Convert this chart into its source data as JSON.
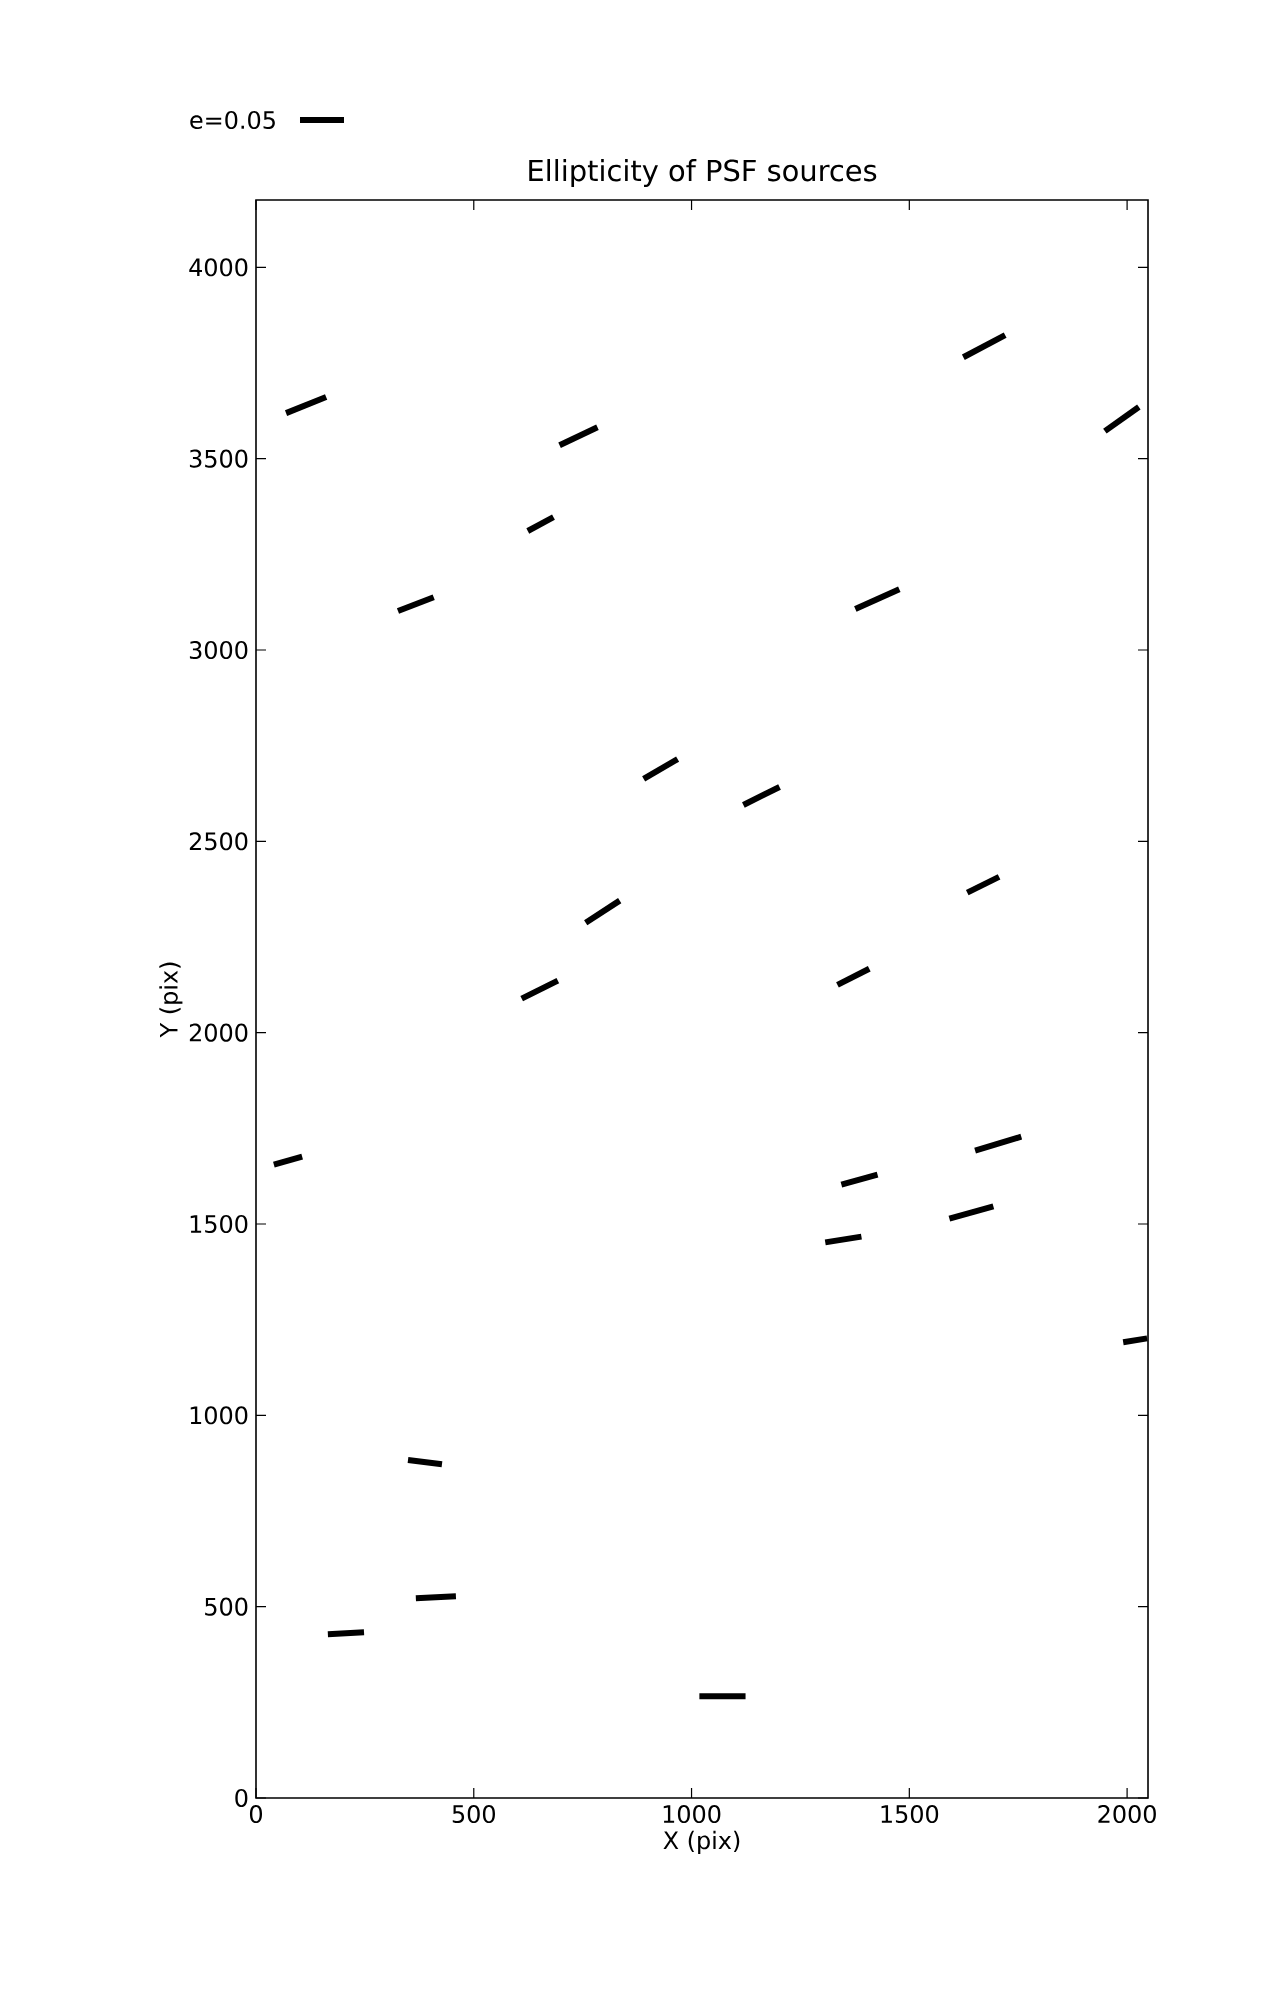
{
  "chart_data": {
    "type": "line",
    "title": "Ellipticity of PSF sources",
    "xlabel": "X (pix)",
    "ylabel": "Y (pix)",
    "xlim": [
      0,
      2048
    ],
    "ylim": [
      0,
      4176
    ],
    "xticks": [
      0,
      500,
      1000,
      1500,
      2000
    ],
    "yticks": [
      0,
      500,
      1000,
      1500,
      2000,
      2500,
      3000,
      3500,
      4000
    ],
    "annotations": [
      "e=0.05"
    ],
    "grid": false,
    "marker": "none",
    "line_style": "solid",
    "series": [
      {
        "color": "#000000",
        "x": [
          69,
          161
        ],
        "values": [
          3619,
          3661
        ]
      },
      {
        "color": "#000000",
        "x": [
          326,
          408
        ],
        "values": [
          3102,
          3138
        ]
      },
      {
        "color": "#000000",
        "x": [
          624,
          683
        ],
        "values": [
          3311,
          3347
        ]
      },
      {
        "color": "#000000",
        "x": [
          697,
          784
        ],
        "values": [
          3535,
          3582
        ]
      },
      {
        "color": "#000000",
        "x": [
          1624,
          1720
        ],
        "values": [
          3765,
          3823
        ]
      },
      {
        "color": "#000000",
        "x": [
          1949,
          2027
        ],
        "values": [
          3572,
          3635
        ]
      },
      {
        "color": "#000000",
        "x": [
          1376,
          1477
        ],
        "values": [
          3107,
          3159
        ]
      },
      {
        "color": "#000000",
        "x": [
          890,
          968
        ],
        "values": [
          2663,
          2715
        ]
      },
      {
        "color": "#000000",
        "x": [
          1119,
          1202
        ],
        "values": [
          2595,
          2642
        ]
      },
      {
        "color": "#000000",
        "x": [
          757,
          835
        ],
        "values": [
          2287,
          2345
        ]
      },
      {
        "color": "#000000",
        "x": [
          610,
          693
        ],
        "values": [
          2089,
          2136
        ]
      },
      {
        "color": "#000000",
        "x": [
          1633,
          1706
        ],
        "values": [
          2366,
          2407
        ]
      },
      {
        "color": "#000000",
        "x": [
          1335,
          1408
        ],
        "values": [
          2125,
          2167
        ]
      },
      {
        "color": "#000000",
        "x": [
          41,
          106
        ],
        "values": [
          1655,
          1676
        ]
      },
      {
        "color": "#000000",
        "x": [
          1651,
          1757
        ],
        "values": [
          1692,
          1728
        ]
      },
      {
        "color": "#000000",
        "x": [
          1344,
          1427
        ],
        "values": [
          1603,
          1629
        ]
      },
      {
        "color": "#000000",
        "x": [
          1592,
          1693
        ],
        "values": [
          1514,
          1546
        ]
      },
      {
        "color": "#000000",
        "x": [
          1307,
          1390
        ],
        "values": [
          1452,
          1467
        ]
      },
      {
        "color": "#000000",
        "x": [
          1991,
          2046
        ],
        "values": [
          1191,
          1201
        ]
      },
      {
        "color": "#000000",
        "x": [
          349,
          427
        ],
        "values": [
          883,
          872
        ]
      },
      {
        "color": "#000000",
        "x": [
          367,
          459
        ],
        "values": [
          522,
          527
        ]
      },
      {
        "color": "#000000",
        "x": [
          165,
          248
        ],
        "values": [
          428,
          433
        ]
      },
      {
        "color": "#000000",
        "x": [
          1018,
          1124
        ],
        "values": [
          266,
          266
        ]
      }
    ]
  }
}
